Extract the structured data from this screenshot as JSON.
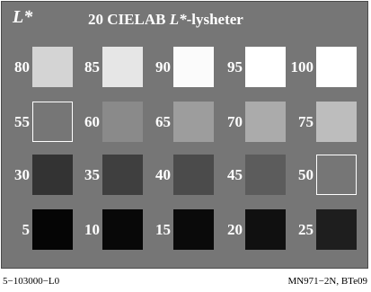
{
  "corner_label": "L*",
  "title": {
    "prefix": "20 CIELAB ",
    "italic": "L*",
    "suffix": "-lysheter"
  },
  "swatches": [
    {
      "label": "80",
      "color": "#d4d4d4",
      "outlined": false
    },
    {
      "label": "85",
      "color": "#e6e6e6",
      "outlined": false
    },
    {
      "label": "90",
      "color": "#fbfbfb",
      "outlined": false
    },
    {
      "label": "95",
      "color": "#ffffff",
      "outlined": false
    },
    {
      "label": "100",
      "color": "#ffffff",
      "outlined": false
    },
    {
      "label": "55",
      "color": "#767676",
      "outlined": true
    },
    {
      "label": "60",
      "color": "#8a8a8a",
      "outlined": false
    },
    {
      "label": "65",
      "color": "#9d9d9d",
      "outlined": false
    },
    {
      "label": "70",
      "color": "#ababab",
      "outlined": false
    },
    {
      "label": "75",
      "color": "#bdbdbd",
      "outlined": false
    },
    {
      "label": "30",
      "color": "#333333",
      "outlined": false
    },
    {
      "label": "35",
      "color": "#3f3f3f",
      "outlined": false
    },
    {
      "label": "40",
      "color": "#4b4b4b",
      "outlined": false
    },
    {
      "label": "45",
      "color": "#5c5c5c",
      "outlined": false
    },
    {
      "label": "50",
      "color": "#767676",
      "outlined": true
    },
    {
      "label": "5",
      "color": "#050505",
      "outlined": false
    },
    {
      "label": "10",
      "color": "#080808",
      "outlined": false
    },
    {
      "label": "15",
      "color": "#0a0a0a",
      "outlined": false
    },
    {
      "label": "20",
      "color": "#101010",
      "outlined": false
    },
    {
      "label": "25",
      "color": "#1e1e1e",
      "outlined": false
    }
  ],
  "footer": {
    "left": "5−103000−L0",
    "right": "MN971−2N, BTe09"
  }
}
